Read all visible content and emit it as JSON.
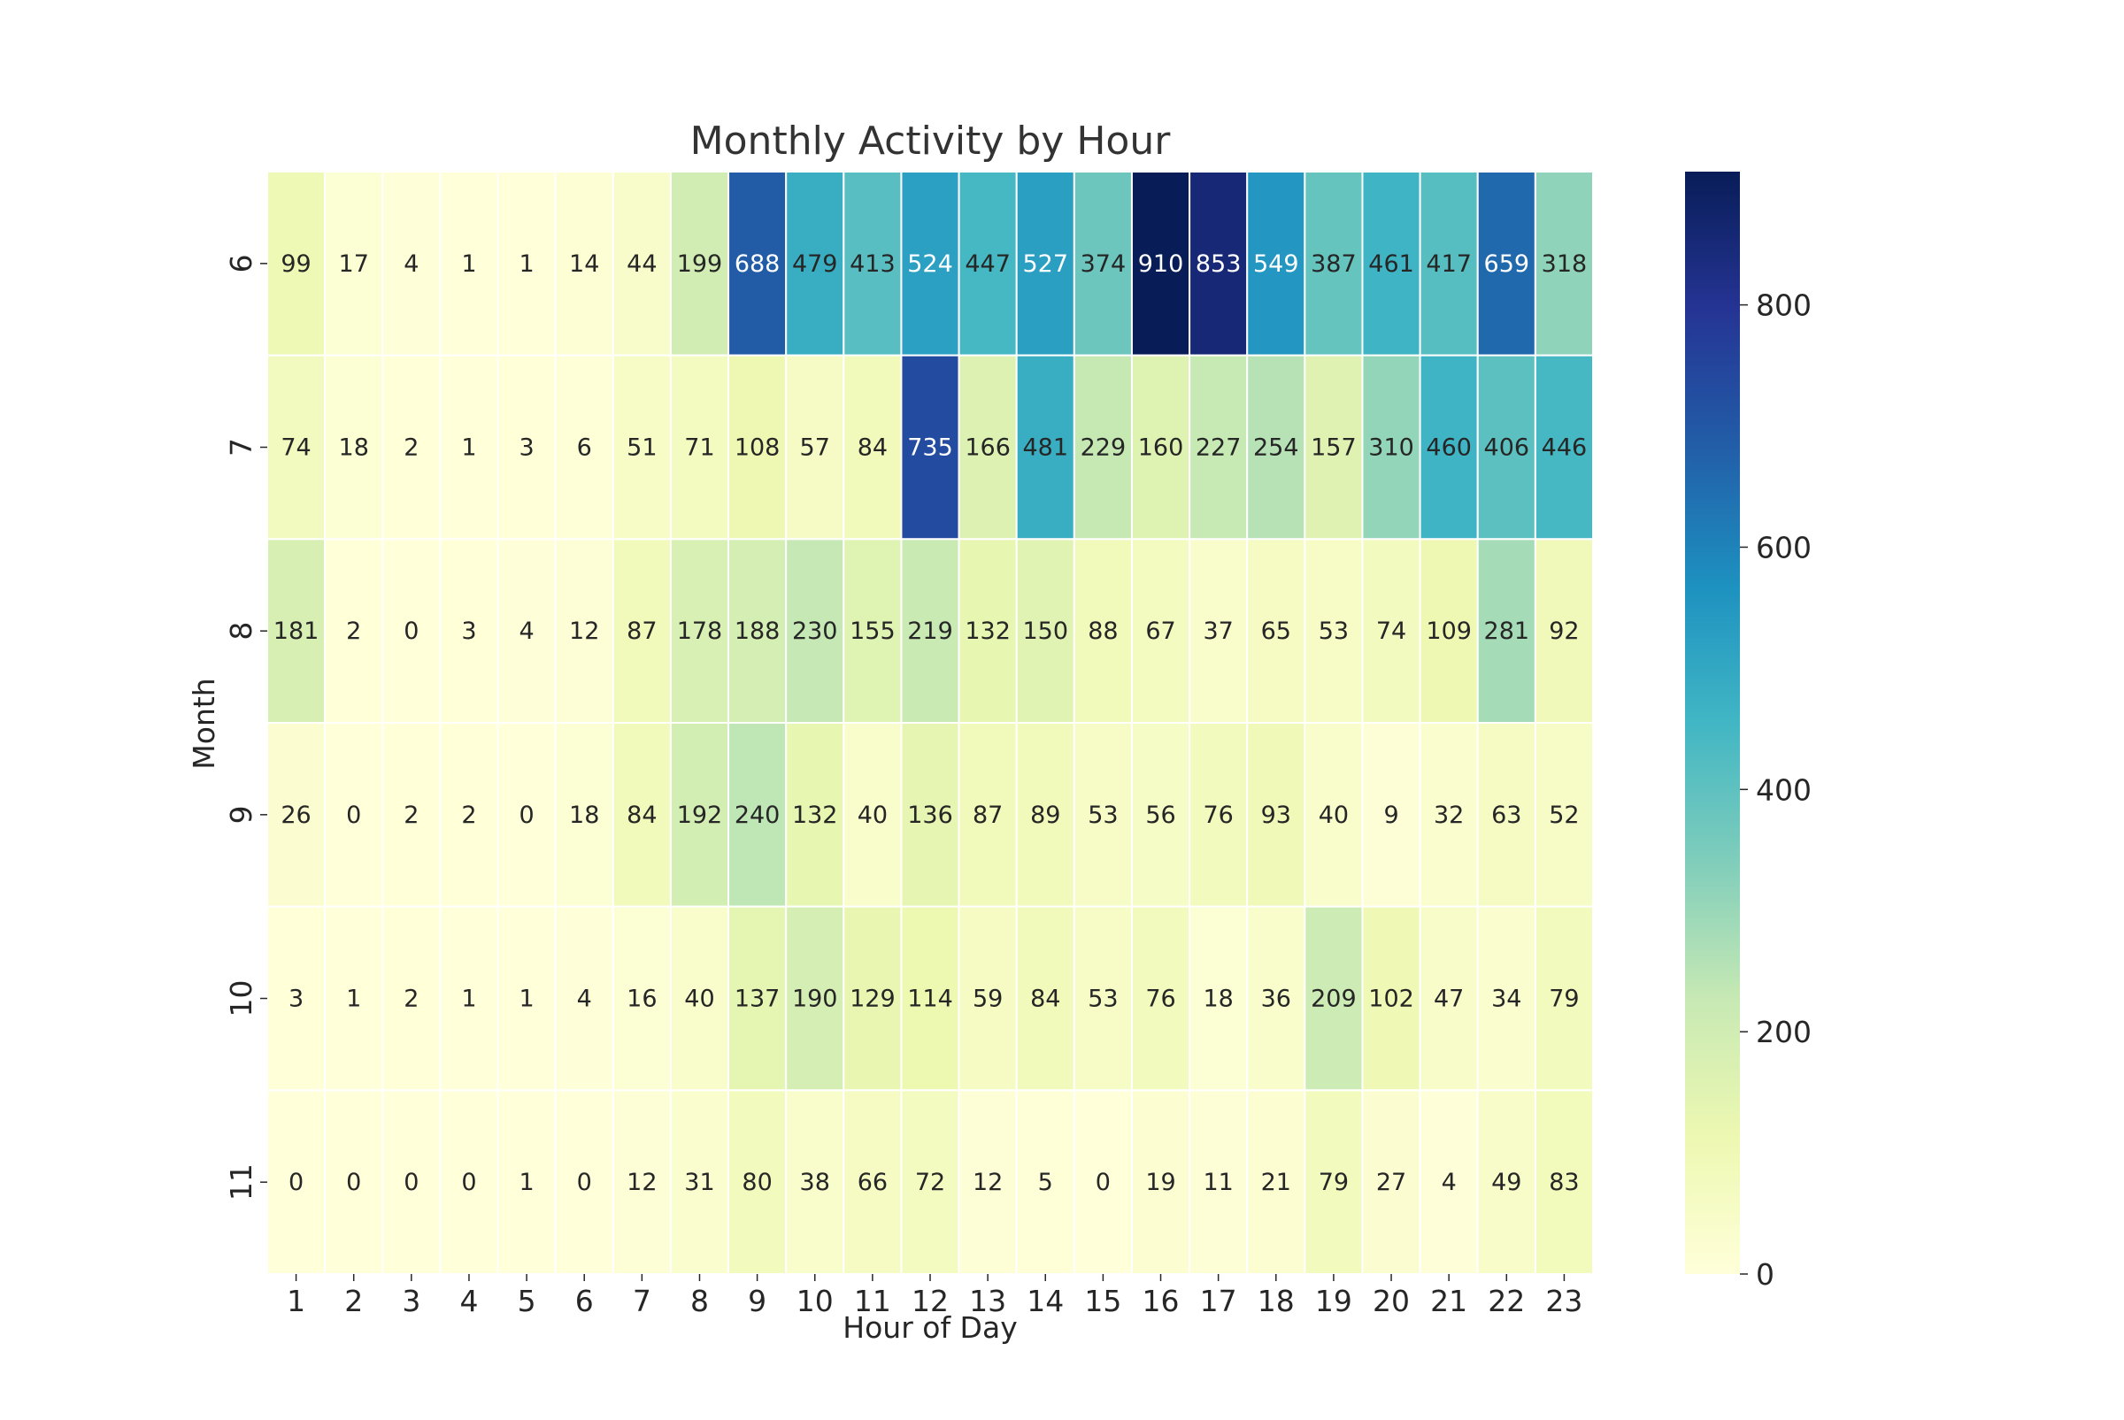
{
  "chart_data": {
    "type": "heatmap",
    "title": "Monthly Activity by Hour",
    "xlabel": "Hour of Day",
    "ylabel": "Month",
    "x": [
      "1",
      "2",
      "3",
      "4",
      "5",
      "6",
      "7",
      "8",
      "9",
      "10",
      "11",
      "12",
      "13",
      "14",
      "15",
      "16",
      "17",
      "18",
      "19",
      "20",
      "21",
      "22",
      "23"
    ],
    "y": [
      "6",
      "7",
      "8",
      "9",
      "10",
      "11"
    ],
    "values": [
      [
        99,
        17,
        4,
        1,
        1,
        14,
        44,
        199,
        688,
        479,
        413,
        524,
        447,
        527,
        374,
        910,
        853,
        549,
        387,
        461,
        417,
        659,
        318
      ],
      [
        74,
        18,
        2,
        1,
        3,
        6,
        51,
        71,
        108,
        57,
        84,
        735,
        166,
        481,
        229,
        160,
        227,
        254,
        157,
        310,
        460,
        406,
        446
      ],
      [
        181,
        2,
        0,
        3,
        4,
        12,
        87,
        178,
        188,
        230,
        155,
        219,
        132,
        150,
        88,
        67,
        37,
        65,
        53,
        74,
        109,
        281,
        92
      ],
      [
        26,
        0,
        2,
        2,
        0,
        18,
        84,
        192,
        240,
        132,
        40,
        136,
        87,
        89,
        53,
        56,
        76,
        93,
        40,
        9,
        32,
        63,
        52
      ],
      [
        3,
        1,
        2,
        1,
        1,
        4,
        16,
        40,
        137,
        190,
        129,
        114,
        59,
        84,
        53,
        76,
        18,
        36,
        209,
        102,
        47,
        34,
        79
      ],
      [
        0,
        0,
        0,
        0,
        1,
        0,
        12,
        31,
        80,
        38,
        66,
        72,
        12,
        5,
        0,
        19,
        11,
        21,
        79,
        27,
        4,
        49,
        83
      ]
    ],
    "colormap": "YlGnBu",
    "value_range": [
      0,
      910
    ],
    "colorbar": {
      "ticks": [
        0,
        200,
        400,
        600,
        800
      ]
    },
    "annotated": true,
    "grid_lines_color": "#ffffff"
  }
}
